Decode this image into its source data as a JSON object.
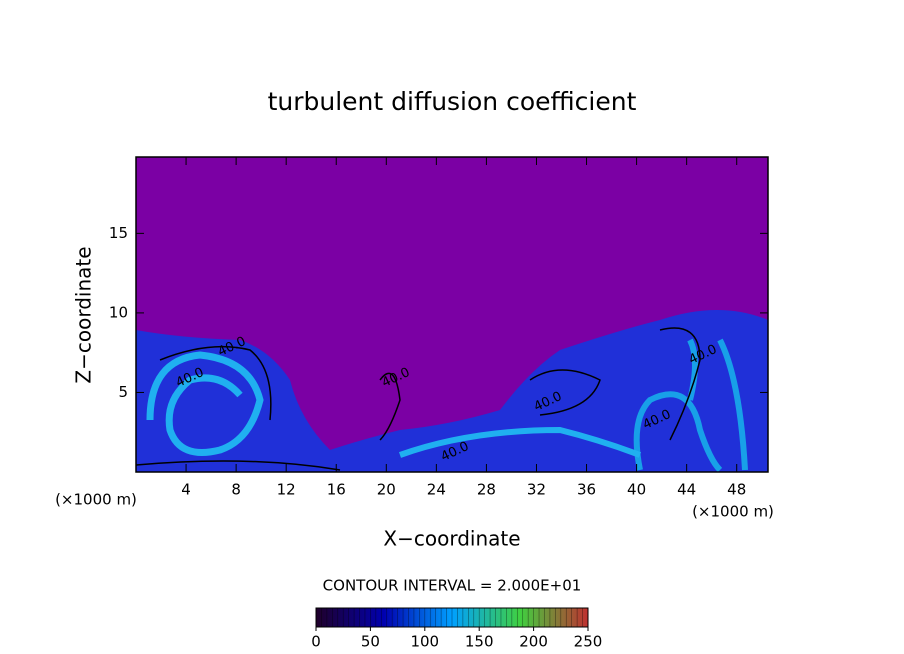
{
  "chart_data": {
    "type": "contour",
    "title": "turbulent diffusion coefficient",
    "xlabel": "X−coordinate",
    "ylabel": "Z−coordinate",
    "x_unit": "(×1000 m)",
    "x_unit_right": "(×1000 m)",
    "xlim": [
      0,
      50.5
    ],
    "xticks": [
      4,
      8,
      12,
      16,
      20,
      24,
      28,
      32,
      36,
      40,
      44,
      48
    ],
    "ylim": [
      0,
      19.8
    ],
    "yticks": [
      5,
      10,
      15
    ],
    "contour_interval": "CONTOUR INTERVAL = 2.000E+01",
    "contour_labels": [
      "40.0",
      "40.0",
      "40.0",
      "40.0",
      "40.0",
      "40.0",
      "40.0"
    ],
    "colorbar": {
      "lim": [
        0,
        250
      ],
      "ticks": [
        0,
        50,
        100,
        150,
        200,
        250
      ],
      "colors": [
        "#20002a",
        "#0000b0",
        "#00a0ff",
        "#40d040",
        "#c03030"
      ]
    },
    "background_color": "#7b00a4"
  }
}
